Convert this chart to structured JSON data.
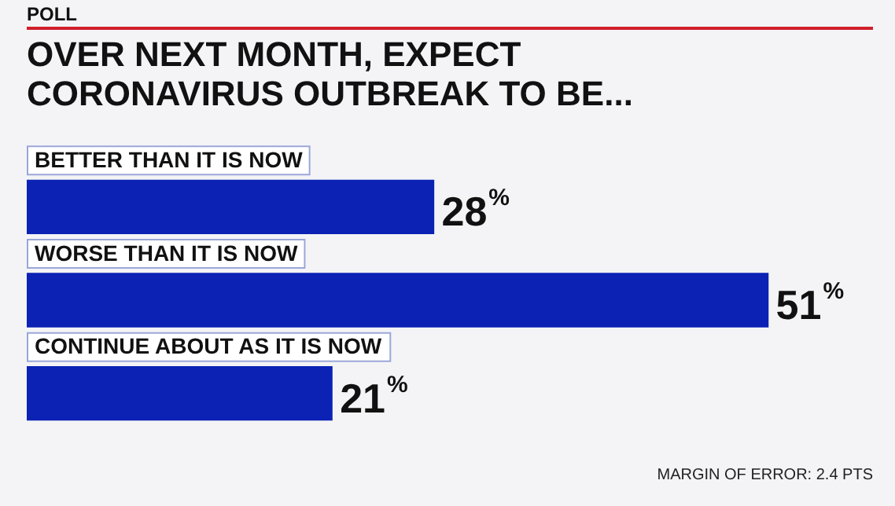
{
  "chart_data": {
    "type": "bar",
    "orientation": "horizontal",
    "subtitle": "POLL",
    "title": "OVER NEXT MONTH, EXPECT CORONAVIRUS OUTBREAK TO BE...",
    "categories": [
      "BETTER THAN IT IS NOW",
      "WORSE THAN IT IS NOW",
      "CONTINUE ABOUT AS IT IS NOW"
    ],
    "values": [
      28,
      51,
      21
    ],
    "value_labels": [
      "28%",
      "51%",
      "21%"
    ],
    "color": "#0b22b4",
    "annotations": [
      "MARGIN OF ERROR: 2.4 PTS"
    ]
  }
}
